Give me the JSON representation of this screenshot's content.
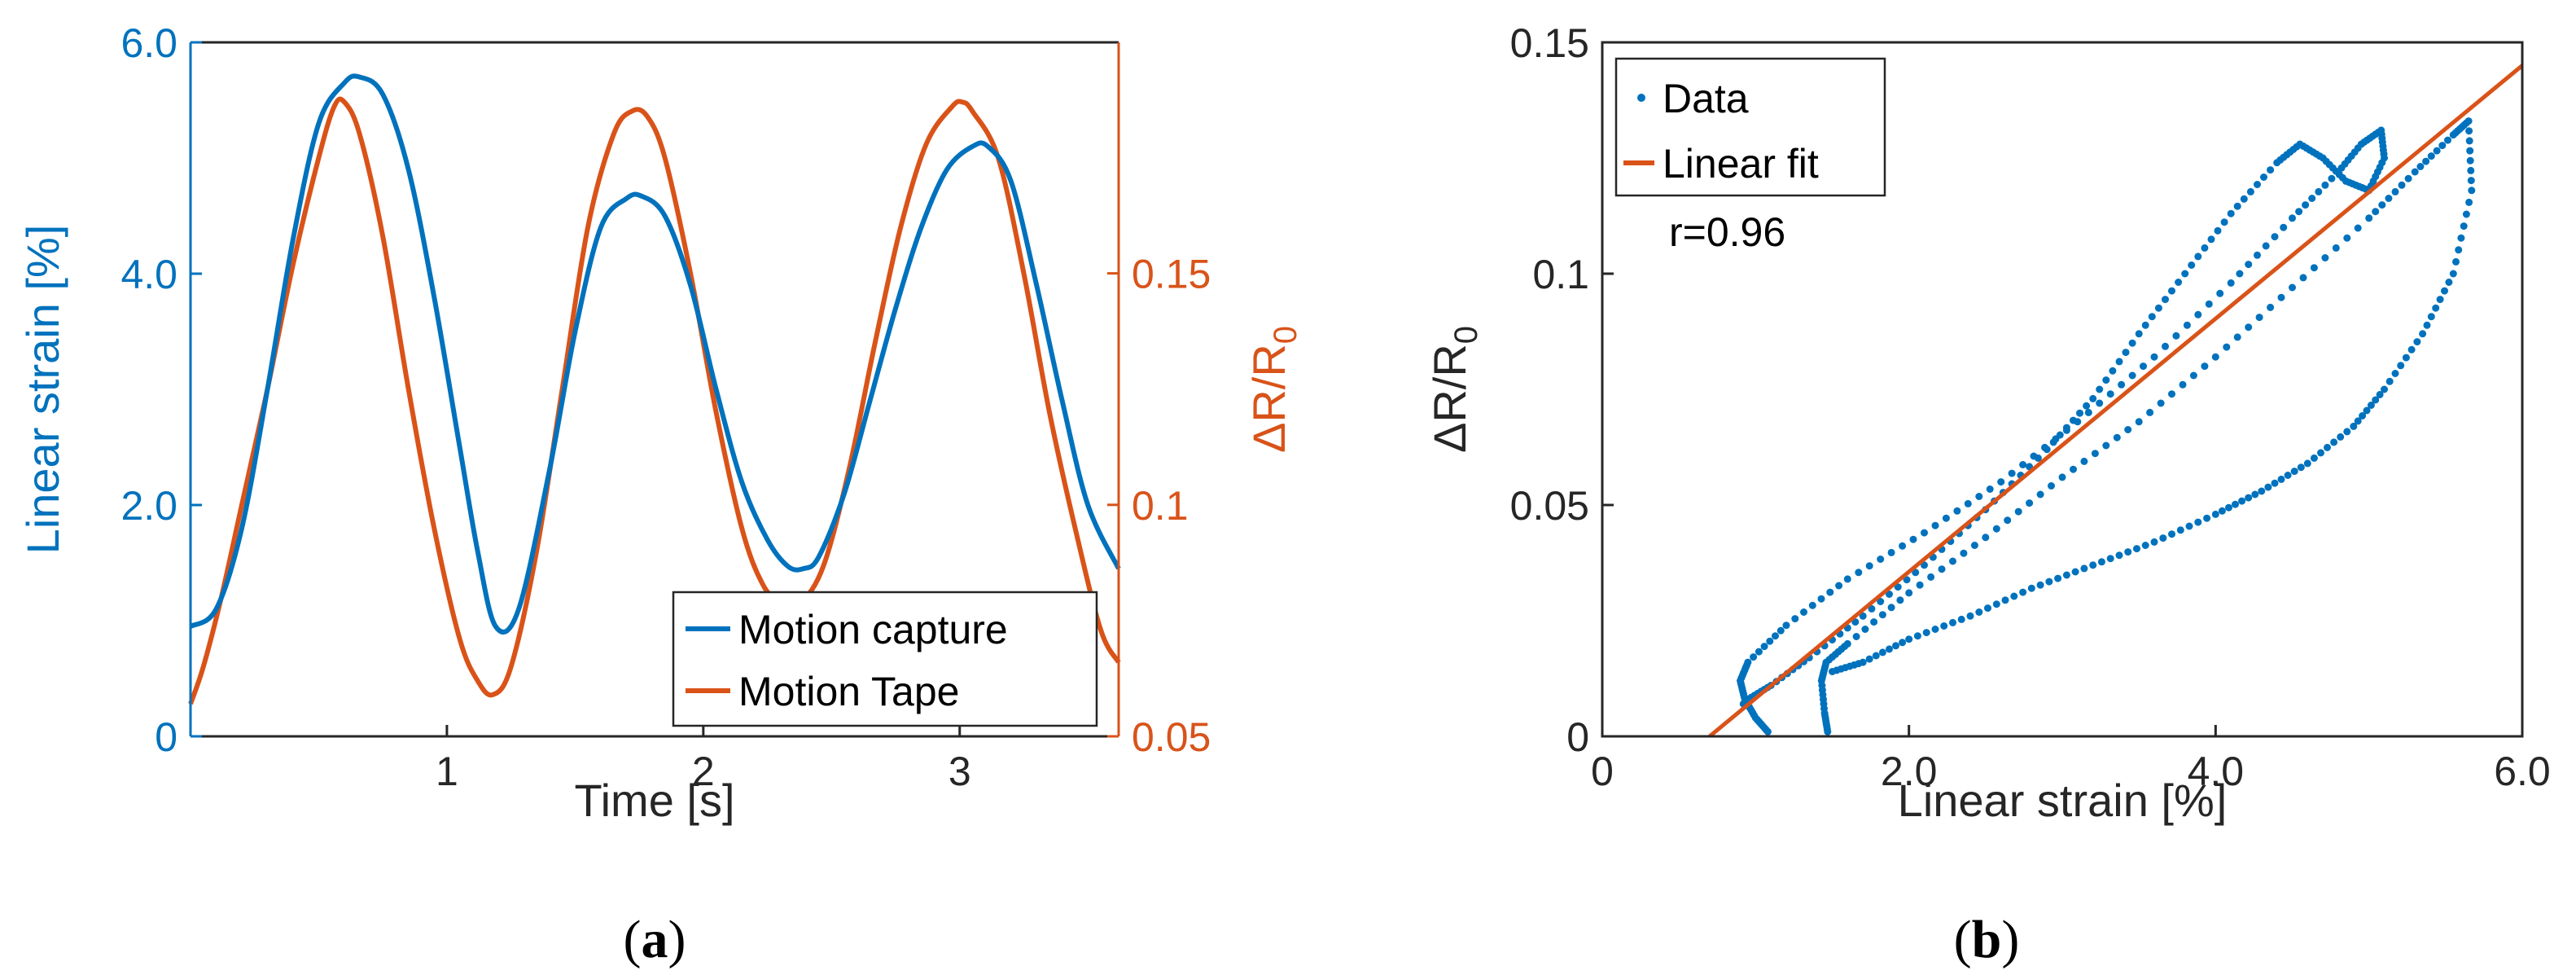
{
  "colors": {
    "blue": "#0072BD",
    "orange": "#D95319",
    "axis": "#262626"
  },
  "chart_data": [
    {
      "type": "line",
      "caption": {
        "open": "(",
        "letter": "a",
        "close": ")"
      },
      "xlabel": "Time [s]",
      "ylabel_left": "Linear strain [%]",
      "ylabel_right": {
        "base": "ΔR/R",
        "sub": "0"
      },
      "xlim": [
        0,
        3.62
      ],
      "ylim_left": [
        0,
        6.0
      ],
      "ylim_right": [
        0.05,
        0.1999
      ],
      "xticks": [
        {
          "v": 1,
          "t": "1"
        },
        {
          "v": 2,
          "t": "2"
        },
        {
          "v": 3,
          "t": "3"
        }
      ],
      "yticks_left": [
        {
          "v": 0,
          "t": "0"
        },
        {
          "v": 2.0,
          "t": "2.0"
        },
        {
          "v": 4.0,
          "t": "4.0"
        },
        {
          "v": 6.0,
          "t": "6.0"
        }
      ],
      "yticks_right": [
        {
          "v": 0.05,
          "t": "0.05"
        },
        {
          "v": 0.1,
          "t": "0.1"
        },
        {
          "v": 0.15,
          "t": "0.15"
        }
      ],
      "legend": {
        "position": "bottom-right",
        "entries": [
          "Motion capture",
          "Motion Tape"
        ]
      },
      "series": [
        {
          "name": "Motion capture",
          "axis": "left",
          "color": "#0072BD",
          "x": [
            0.0,
            0.1,
            0.2,
            0.3,
            0.4,
            0.5,
            0.6,
            0.66,
            0.75,
            0.85,
            0.95,
            1.05,
            1.12,
            1.19,
            1.28,
            1.4,
            1.5,
            1.6,
            1.7,
            1.76,
            1.85,
            1.95,
            2.05,
            2.15,
            2.25,
            2.33,
            2.39,
            2.45,
            2.55,
            2.65,
            2.75,
            2.85,
            2.95,
            3.05,
            3.11,
            3.2,
            3.3,
            3.4,
            3.5,
            3.62
          ],
          "y": [
            0.95,
            1.1,
            1.8,
            3.0,
            4.3,
            5.3,
            5.65,
            5.7,
            5.55,
            4.9,
            3.8,
            2.5,
            1.6,
            0.95,
            1.1,
            2.3,
            3.5,
            4.4,
            4.65,
            4.67,
            4.5,
            3.9,
            3.0,
            2.2,
            1.7,
            1.47,
            1.45,
            1.55,
            2.1,
            2.9,
            3.7,
            4.4,
            4.9,
            5.1,
            5.1,
            4.8,
            3.9,
            2.9,
            2.0,
            1.45
          ]
        },
        {
          "name": "Motion Tape",
          "axis": "right",
          "color": "#D95319",
          "x": [
            0.0,
            0.05,
            0.12,
            0.2,
            0.3,
            0.4,
            0.5,
            0.56,
            0.6,
            0.66,
            0.75,
            0.85,
            0.95,
            1.05,
            1.12,
            1.18,
            1.25,
            1.35,
            1.45,
            1.55,
            1.65,
            1.72,
            1.78,
            1.85,
            1.95,
            2.05,
            2.15,
            2.23,
            2.3,
            2.38,
            2.47,
            2.57,
            2.67,
            2.77,
            2.87,
            2.97,
            3.01,
            3.05,
            3.15,
            3.25,
            3.35,
            3.45,
            3.55,
            3.62
          ],
          "y": [
            0.057,
            0.065,
            0.08,
            0.1,
            0.125,
            0.152,
            0.175,
            0.186,
            0.187,
            0.18,
            0.158,
            0.125,
            0.095,
            0.071,
            0.062,
            0.059,
            0.065,
            0.09,
            0.125,
            0.16,
            0.18,
            0.185,
            0.184,
            0.175,
            0.15,
            0.12,
            0.095,
            0.083,
            0.079,
            0.079,
            0.087,
            0.108,
            0.135,
            0.16,
            0.178,
            0.186,
            0.187,
            0.185,
            0.175,
            0.15,
            0.12,
            0.095,
            0.073,
            0.066
          ]
        }
      ]
    },
    {
      "type": "scatter",
      "caption": {
        "open": "(",
        "letter": "b",
        "close": ")"
      },
      "xlabel": "Linear strain [%]",
      "ylabel": {
        "base": "ΔR/R",
        "sub": "0"
      },
      "xlim": [
        0,
        6.0
      ],
      "ylim": [
        0,
        0.15
      ],
      "xticks": [
        {
          "v": 0,
          "t": "0"
        },
        {
          "v": 2.0,
          "t": "2.0"
        },
        {
          "v": 4.0,
          "t": "4.0"
        },
        {
          "v": 6.0,
          "t": "6.0"
        }
      ],
      "yticks": [
        {
          "v": 0,
          "t": "0"
        },
        {
          "v": 0.05,
          "t": "0.05"
        },
        {
          "v": 0.1,
          "t": "0.1"
        },
        {
          "v": 0.15,
          "t": "0.15"
        }
      ],
      "legend": {
        "position": "top-left",
        "entries": [
          "Data",
          "Linear fit"
        ]
      },
      "annotation": "r=0.96",
      "fit": {
        "name": "Linear fit",
        "color": "#D95319",
        "x": [
          0.7,
          6.0
        ],
        "y": [
          0.0,
          0.145
        ]
      },
      "data_series": {
        "name": "Data",
        "color": "#0072BD",
        "loops": [
          {
            "x": [
              1.08,
              1.0,
              0.93,
              0.9,
              0.95,
              1.2,
              1.6,
              2.1,
              2.6,
              3.1,
              3.6,
              4.1,
              4.5,
              4.8,
              4.95,
              5.08,
              5.1,
              5.0,
              4.85,
              4.7,
              4.55,
              4.4,
              4.1,
              3.8,
              3.5,
              3.2,
              2.9,
              2.5,
              2.1,
              1.7,
              1.35,
              1.1,
              0.95,
              0.92
            ],
            "y": [
              0.001,
              0.004,
              0.008,
              0.012,
              0.016,
              0.024,
              0.034,
              0.044,
              0.055,
              0.068,
              0.082,
              0.098,
              0.112,
              0.122,
              0.128,
              0.131,
              0.125,
              0.118,
              0.12,
              0.125,
              0.128,
              0.124,
              0.113,
              0.1,
              0.087,
              0.073,
              0.062,
              0.049,
              0.037,
              0.026,
              0.017,
              0.011,
              0.008,
              0.007
            ]
          },
          {
            "x": [
              1.47,
              1.45,
              1.43,
              1.46,
              1.6,
              2.0,
              2.5,
              3.0,
              3.5,
              4.0,
              4.5,
              5.0,
              5.3,
              5.55,
              5.65,
              5.67,
              5.55,
              5.35,
              5.1,
              4.9,
              4.6,
              4.3,
              4.0,
              3.6,
              3.2,
              2.8,
              2.4,
              2.0,
              1.7,
              1.5
            ],
            "y": [
              0.001,
              0.005,
              0.012,
              0.016,
              0.02,
              0.031,
              0.043,
              0.056,
              0.068,
              0.082,
              0.097,
              0.112,
              0.122,
              0.13,
              0.133,
              0.118,
              0.1,
              0.087,
              0.075,
              0.067,
              0.059,
              0.053,
              0.048,
              0.042,
              0.037,
              0.032,
              0.026,
              0.021,
              0.016,
              0.014
            ]
          }
        ]
      }
    }
  ]
}
